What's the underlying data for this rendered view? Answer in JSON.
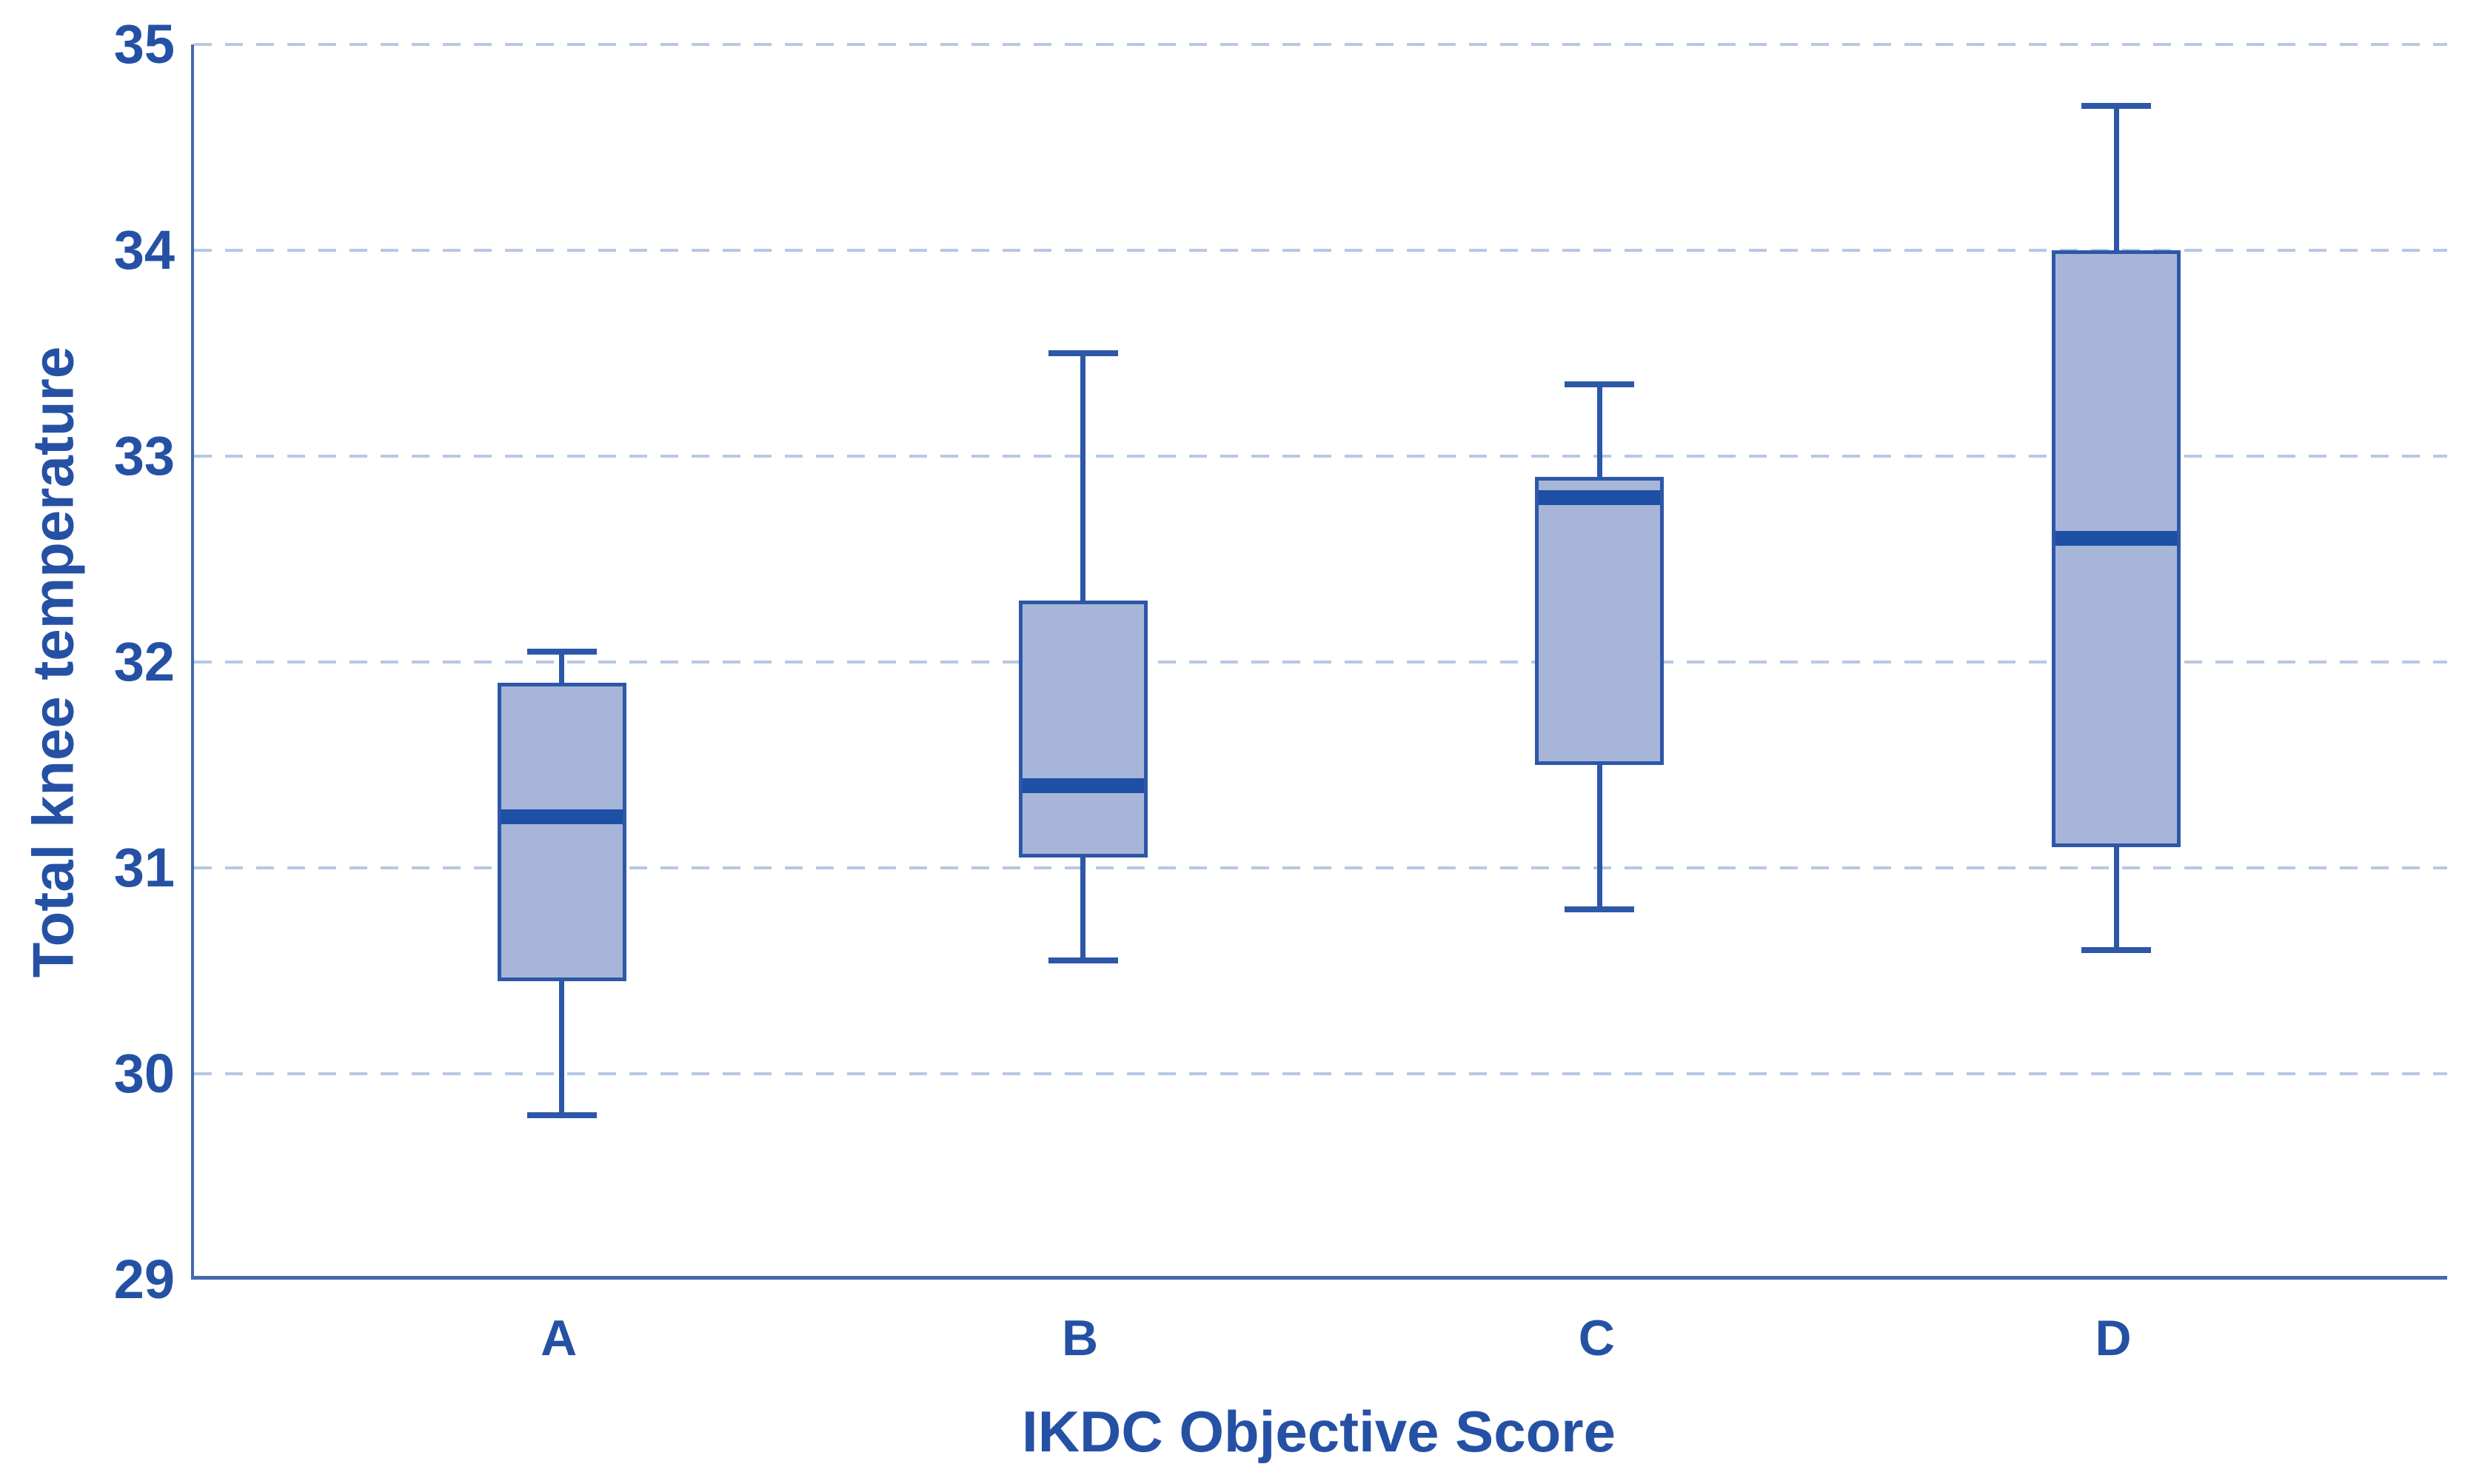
{
  "chart_data": {
    "type": "box",
    "title": "",
    "xlabel": "IKDC Objective Score",
    "ylabel": "Total knee temperature",
    "categories": [
      "A",
      "B",
      "C",
      "D"
    ],
    "ylim": [
      29,
      35
    ],
    "yticks": [
      29,
      30,
      31,
      32,
      33,
      34,
      35
    ],
    "grid": "horizontal dashed gridlines at each integer tick",
    "legend": "none",
    "series": [
      {
        "category": "A",
        "whisker_low": 29.8,
        "q1": 30.45,
        "median": 31.25,
        "q3": 31.9,
        "whisker_high": 32.05
      },
      {
        "category": "B",
        "whisker_low": 30.55,
        "q1": 31.05,
        "median": 31.4,
        "q3": 32.3,
        "whisker_high": 33.5
      },
      {
        "category": "C",
        "whisker_low": 30.8,
        "q1": 31.5,
        "median": 32.8,
        "q3": 32.9,
        "whisker_high": 33.35
      },
      {
        "category": "D",
        "whisker_low": 30.6,
        "q1": 31.1,
        "median": 32.6,
        "q3": 34.0,
        "whisker_high": 34.7
      }
    ],
    "colors": {
      "box_fill": "#a7b6d8",
      "box_border": "#2d57a8",
      "median": "#1d4fa4",
      "whisker": "#2d57a8",
      "gridline": "#b6c8e4",
      "axis_line": "#4568ae",
      "label_text": "#2551a5",
      "background": "#ffffff"
    }
  }
}
